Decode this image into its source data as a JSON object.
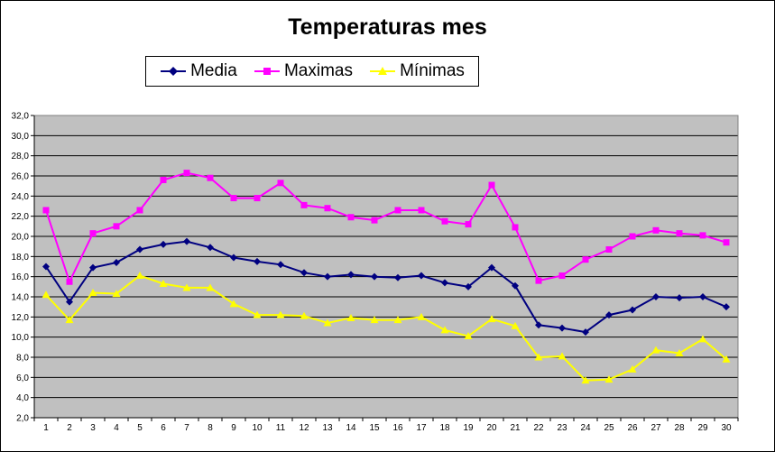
{
  "chart_data": {
    "type": "line",
    "title": "Temperaturas mes",
    "xlabel": "",
    "ylabel": "",
    "categories": [
      "1",
      "2",
      "3",
      "4",
      "5",
      "6",
      "7",
      "8",
      "9",
      "10",
      "11",
      "12",
      "13",
      "14",
      "15",
      "16",
      "17",
      "18",
      "19",
      "20",
      "21",
      "22",
      "23",
      "24",
      "25",
      "26",
      "27",
      "28",
      "29",
      "30"
    ],
    "ylim": [
      2.0,
      32.0
    ],
    "yticks": [
      "2,0",
      "4,0",
      "6,0",
      "8,0",
      "10,0",
      "12,0",
      "14,0",
      "16,0",
      "18,0",
      "20,0",
      "22,0",
      "24,0",
      "26,0",
      "28,0",
      "30,0",
      "32,0"
    ],
    "grid": true,
    "legend": "top",
    "plot_background": "#c0c0c0",
    "series": [
      {
        "name": "Media",
        "color": "#000080",
        "marker": "diamond",
        "values": [
          17.0,
          13.5,
          16.9,
          17.4,
          18.7,
          19.2,
          19.5,
          18.9,
          17.9,
          17.5,
          17.2,
          16.4,
          16.0,
          16.2,
          16.0,
          15.9,
          16.1,
          15.4,
          15.0,
          16.9,
          15.1,
          11.2,
          10.9,
          10.5,
          12.2,
          12.7,
          14.0,
          13.9,
          14.0,
          13.0
        ]
      },
      {
        "name": "Maximas",
        "color": "#ff00ff",
        "marker": "square",
        "values": [
          22.6,
          15.5,
          20.3,
          21.0,
          22.6,
          25.6,
          26.3,
          25.8,
          23.8,
          23.8,
          25.3,
          23.1,
          22.8,
          21.9,
          21.6,
          22.6,
          22.6,
          21.5,
          21.2,
          25.1,
          20.9,
          15.6,
          16.1,
          17.7,
          18.7,
          20.0,
          20.6,
          20.3,
          20.1,
          19.4
        ]
      },
      {
        "name": "Mínimas",
        "color": "#ffff00",
        "marker": "triangle",
        "values": [
          14.2,
          11.7,
          14.4,
          14.3,
          16.1,
          15.3,
          14.9,
          14.9,
          13.3,
          12.2,
          12.2,
          12.1,
          11.4,
          11.9,
          11.7,
          11.7,
          12.0,
          10.7,
          10.1,
          11.8,
          11.1,
          8.0,
          8.1,
          5.7,
          5.8,
          6.8,
          8.7,
          8.4,
          9.8,
          7.8
        ]
      }
    ]
  }
}
